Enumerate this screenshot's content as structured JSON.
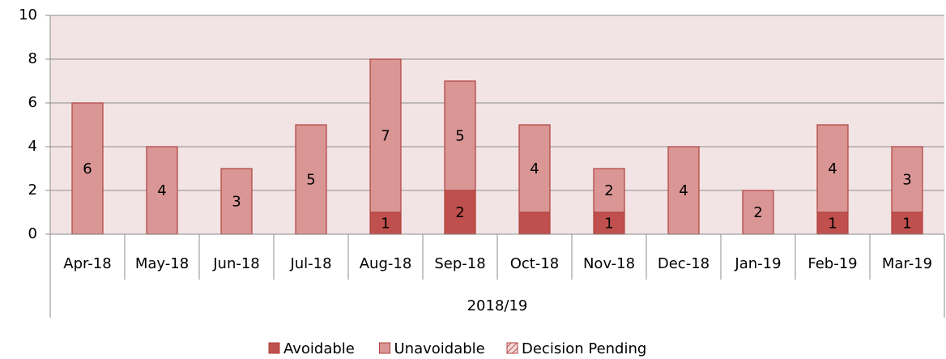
{
  "chart_data": {
    "type": "stacked_bar",
    "categories": [
      "Apr-18",
      "May-18",
      "Jun-18",
      "Jul-18",
      "Aug-18",
      "Sep-18",
      "Oct-18",
      "Nov-18",
      "Dec-18",
      "Jan-19",
      "Feb-19",
      "Mar-19"
    ],
    "group_label": "2018/19",
    "series": [
      {
        "name": "Avoidable",
        "color": "#c0504d",
        "values": [
          0,
          0,
          0,
          0,
          1,
          2,
          1,
          1,
          0,
          0,
          1,
          1
        ],
        "value_labels": [
          null,
          null,
          null,
          null,
          "1",
          "2",
          null,
          "1",
          null,
          null,
          "1",
          "1"
        ]
      },
      {
        "name": "Unavoidable",
        "color": "#d99694",
        "values": [
          6,
          4,
          3,
          5,
          7,
          5,
          4,
          2,
          4,
          2,
          4,
          3
        ]
      },
      {
        "name": "Decision Pending",
        "color": "#e6b9b8",
        "pattern": "hatch",
        "values": [
          0,
          0,
          0,
          0,
          0,
          0,
          0,
          0,
          0,
          0,
          0,
          0
        ]
      }
    ],
    "ylim": [
      0,
      10
    ],
    "yticks": [
      0,
      2,
      4,
      6,
      8,
      10
    ],
    "grid": true,
    "legend": "bottom"
  }
}
